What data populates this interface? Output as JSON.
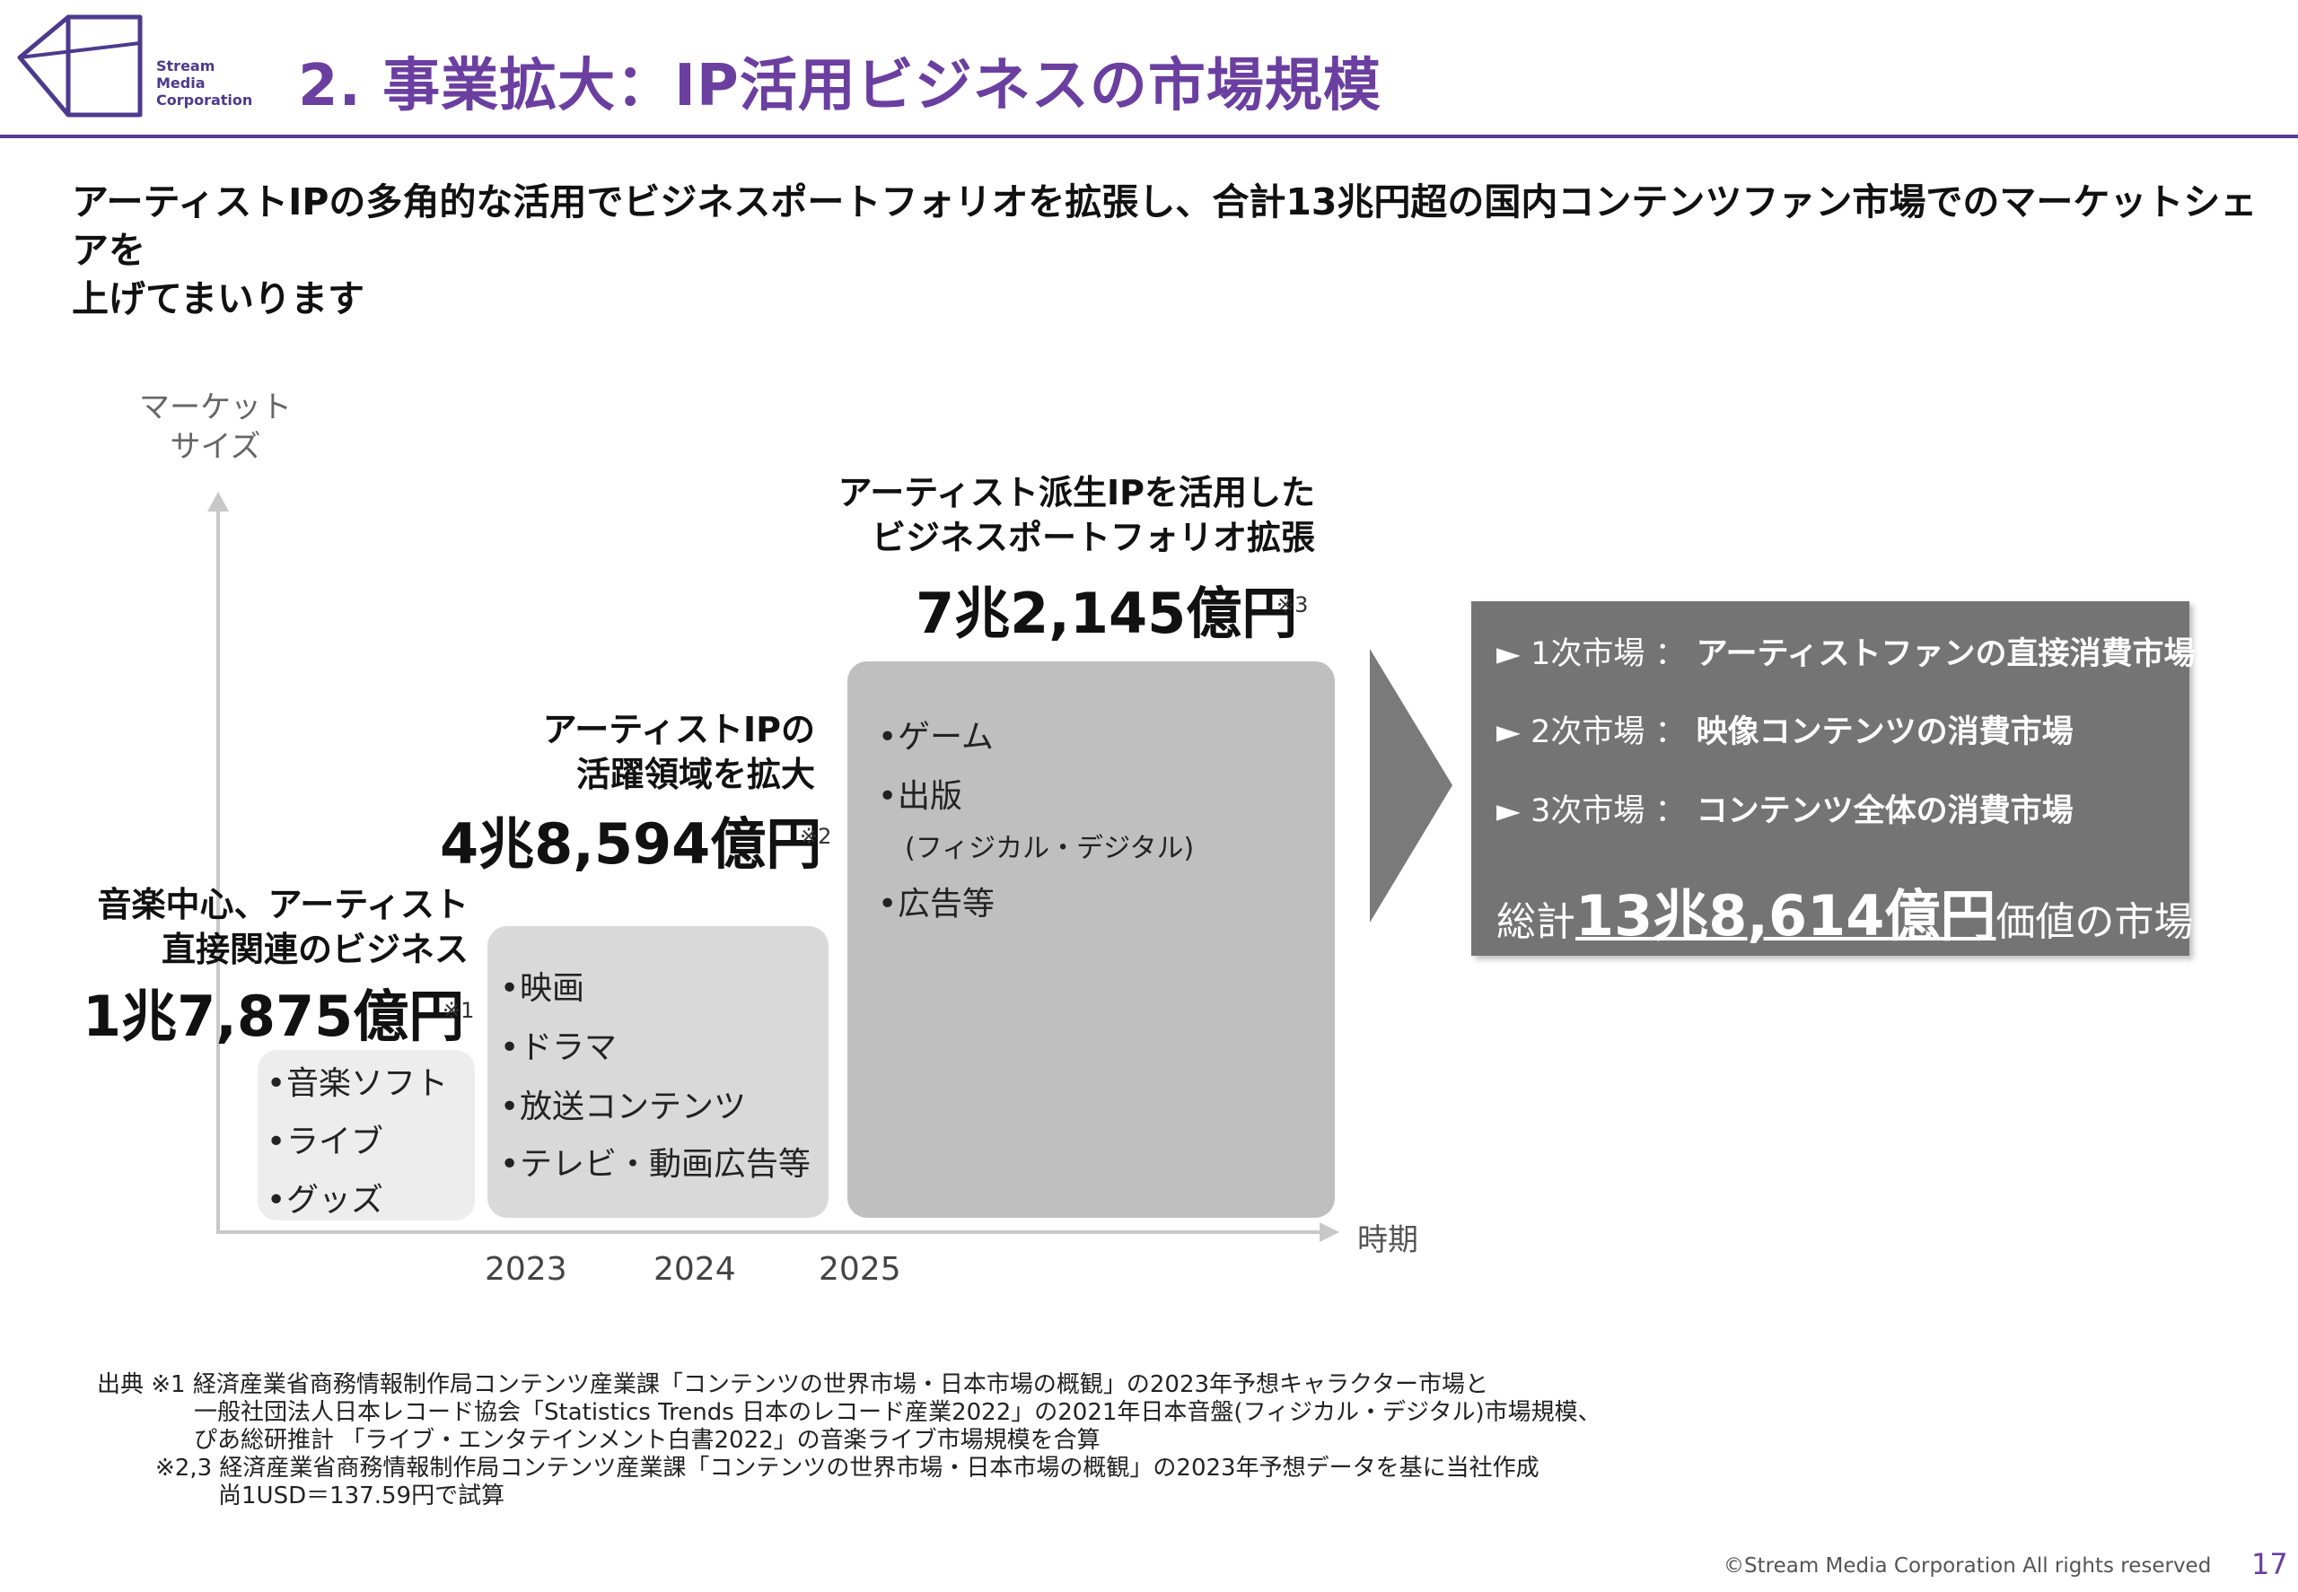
{
  "header": {
    "logo_lines": [
      "Stream",
      "Media",
      "Corporation"
    ],
    "title": "2. 事業拡大：IP活用ビジネスの市場規模"
  },
  "lead": {
    "line1": "アーティストIPの多角的な活用でビジネスポートフォリオを拡張し、合計13兆円超の国内コンテンツファン市場でのマーケットシェアを",
    "line2": "上げてまいります"
  },
  "diagram": {
    "y_axis_label": [
      "マーケット",
      "サイズ"
    ],
    "x_axis_label": "時期",
    "years": [
      "2023",
      "2024",
      "2025"
    ],
    "stages": [
      {
        "caption": [
          "音楽中心、アーティスト",
          "直接関連のビジネス"
        ],
        "amount": "1兆7,875億円",
        "note": "※1",
        "items": [
          "音楽ソフト",
          "ライブ",
          "グッズ"
        ]
      },
      {
        "caption": [
          "アーティストIPの",
          "活躍領域を拡大"
        ],
        "amount": "4兆8,594億円",
        "note": "※2",
        "items": [
          "映画",
          "ドラマ",
          "放送コンテンツ",
          "テレビ・動画広告等"
        ]
      },
      {
        "caption": [
          "アーティスト派生IPを活用した",
          "ビジネスポートフォリオ拡張"
        ],
        "amount": "7兆2,145億円",
        "note": "※3",
        "items": [
          "ゲーム",
          "出版",
          "(フィジカル・デジタル)",
          "広告等"
        ]
      }
    ]
  },
  "summary": {
    "markets": [
      {
        "label": "1次市場",
        "desc": "アーティストファンの直接消費市場"
      },
      {
        "label": "2次市場",
        "desc": "映像コンテンツの消費市場"
      },
      {
        "label": "3次市場",
        "desc": "コンテンツ全体の消費市場"
      }
    ],
    "separator": "：",
    "arrow_glyph": "►",
    "total_prefix": "総計",
    "total_value": "13兆8,614億円",
    "total_suffix": "価値の市場"
  },
  "footer": {
    "sources": [
      "出典 ※1 経済産業省商務情報制作局コンテンツ産業課「コンテンツの世界市場・日本市場の概観」の2023年予想キャラクター市場と",
      "一般社団法人日本レコード協会「Statistics Trends 日本のレコード産業2022」の2021年日本音盤(フィジカル・デジタル)市場規模、",
      "ぴあ総研推計 「ライブ・エンタテインメント白書2022」の音楽ライブ市場規模を合算",
      "※2,3 経済産業省商務情報制作局コンテンツ産業課「コンテンツの世界市場・日本市場の概観」の2023年予想データを基に当社作成",
      "尚1USD＝137.59円で試算"
    ],
    "copyright": "©Stream Media Corporation  All rights reserved",
    "page_number": "17"
  },
  "colors": {
    "title_purple": "#6b3fa0",
    "rule_purple": "#5b3a93",
    "box1": "#ededed",
    "box2": "#d9d9d9",
    "box3": "#bfbfbf",
    "summary_bg": "#747474",
    "arrow": "#7a7a7a"
  }
}
